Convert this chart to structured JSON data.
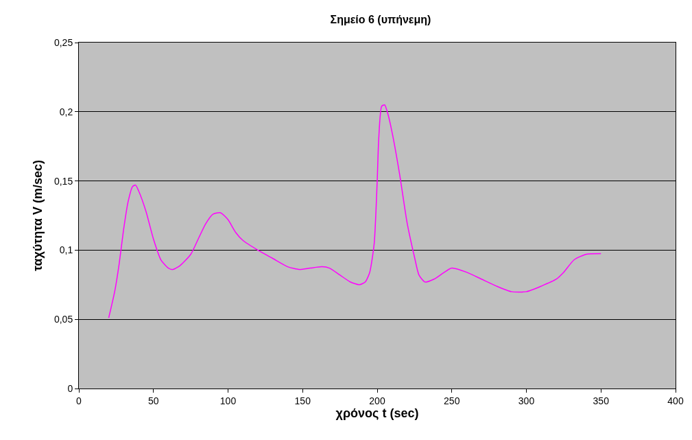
{
  "chart_data": {
    "type": "line",
    "title": "Σημείο 6 (υπήνεμη)",
    "xlabel": "χρόνος t (sec)",
    "ylabel": "ταχύτητα V (m/sec)",
    "x": [
      20,
      24,
      27,
      30,
      33,
      36,
      38,
      40,
      45,
      50,
      55,
      60,
      63,
      68,
      75,
      80,
      85,
      90,
      95,
      100,
      105,
      110,
      120,
      130,
      140,
      148,
      155,
      163,
      168,
      175,
      182,
      188,
      192,
      195,
      198,
      200,
      201,
      203,
      205,
      207,
      210,
      215,
      220,
      225,
      228,
      232,
      238,
      245,
      250,
      260,
      270,
      280,
      290,
      300,
      310,
      320,
      325,
      332,
      340,
      350
    ],
    "series": [
      {
        "color": "#ff00ff",
        "values": [
          0.051,
          0.07,
          0.09,
          0.115,
          0.135,
          0.146,
          0.147,
          0.143,
          0.128,
          0.108,
          0.093,
          0.087,
          0.086,
          0.089,
          0.097,
          0.108,
          0.119,
          0.126,
          0.127,
          0.122,
          0.113,
          0.107,
          0.1,
          0.094,
          0.088,
          0.086,
          0.087,
          0.088,
          0.087,
          0.082,
          0.077,
          0.075,
          0.077,
          0.084,
          0.105,
          0.15,
          0.18,
          0.204,
          0.205,
          0.199,
          0.185,
          0.155,
          0.12,
          0.095,
          0.082,
          0.077,
          0.079,
          0.084,
          0.087,
          0.084,
          0.079,
          0.074,
          0.07,
          0.07,
          0.074,
          0.079,
          0.084,
          0.093,
          0.097,
          0.0975
        ]
      }
    ],
    "xlim": [
      0,
      400
    ],
    "xticks": [
      0,
      50,
      100,
      150,
      200,
      250,
      300,
      350,
      400
    ],
    "ylim": [
      0,
      0.25
    ],
    "yticks": [
      {
        "value": 0,
        "label": "0"
      },
      {
        "value": 0.05,
        "label": "0,05"
      },
      {
        "value": 0.1,
        "label": "0,1"
      },
      {
        "value": 0.15,
        "label": "0,15"
      },
      {
        "value": 0.2,
        "label": "0,2"
      },
      {
        "value": 0.25,
        "label": "0,25"
      }
    ],
    "grid": "y",
    "marker": "none",
    "line_style": "solid"
  }
}
